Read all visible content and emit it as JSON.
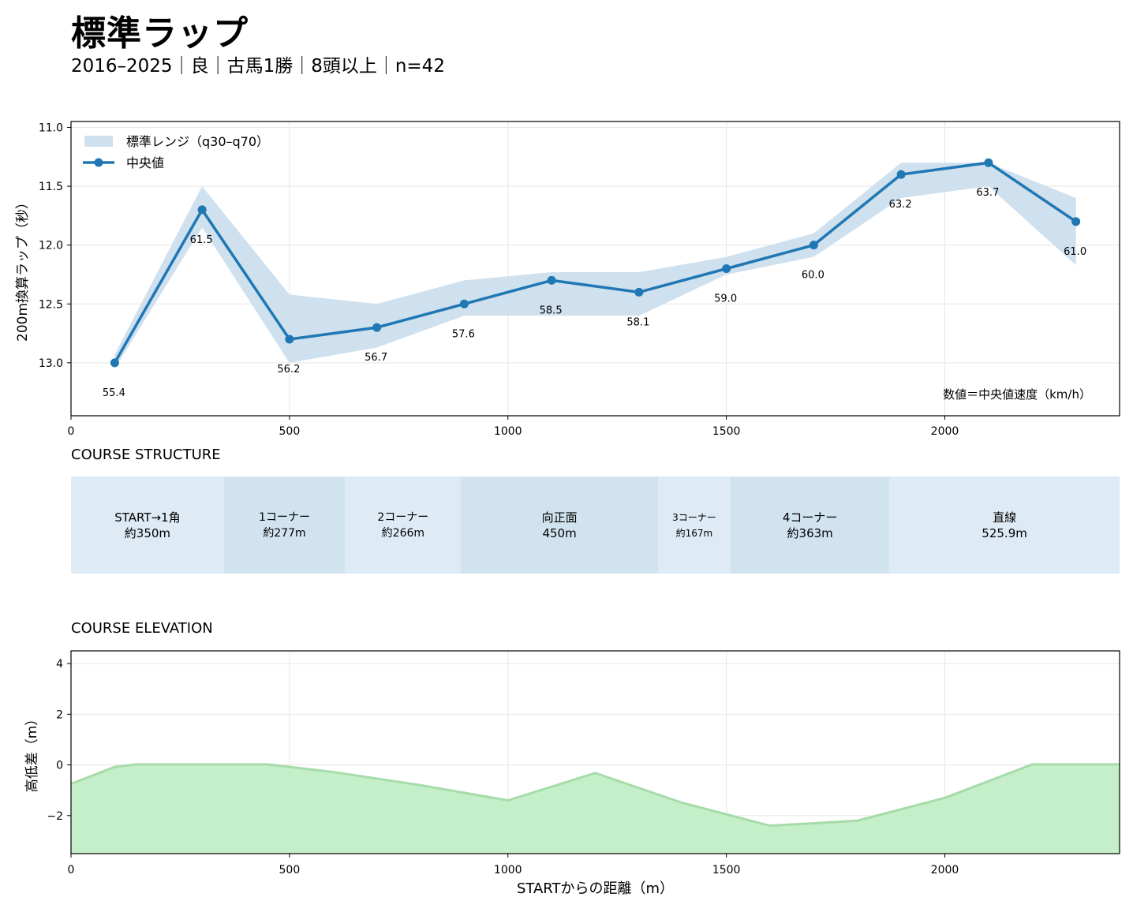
{
  "header": {
    "title": "標準ラップ",
    "subtitle": "2016–2025｜良｜古馬1勝｜8頭以上｜n=42"
  },
  "colors": {
    "line": "#1f77b4",
    "band": "#cfe0ee",
    "grid": "#e6e6e6",
    "seg_light": "#deeaf4",
    "seg_dark": "#d0e3ef",
    "elev_fill": "#c5efc9",
    "elev_line": "#a6dca9"
  },
  "chart_data": [
    {
      "type": "line",
      "title": "",
      "xlabel": "",
      "ylabel": "200m換算ラップ（秒）",
      "xlim": [
        0,
        2400
      ],
      "ylim": [
        13.45,
        10.95
      ],
      "y_inverted": true,
      "xticks": [
        0,
        500,
        1000,
        1500,
        2000
      ],
      "yticks": [
        11.0,
        11.5,
        12.0,
        12.5,
        13.0
      ],
      "grid": true,
      "legend_position": "top-left",
      "band_label": "標準レンジ（q30–q70）",
      "series": [
        {
          "name": "中央値",
          "x": [
            100,
            300,
            500,
            700,
            900,
            1100,
            1300,
            1500,
            1700,
            1900,
            2100,
            2300
          ],
          "y": [
            13.0,
            11.7,
            12.8,
            12.7,
            12.5,
            12.3,
            12.4,
            12.2,
            12.0,
            11.4,
            11.3,
            11.8
          ],
          "speed_labels": [
            "55.4",
            "61.5",
            "56.2",
            "56.7",
            "57.6",
            "58.5",
            "58.1",
            "59.0",
            "60.0",
            "63.2",
            "63.7",
            "61.0"
          ]
        }
      ],
      "band": {
        "x": [
          100,
          300,
          500,
          700,
          900,
          1100,
          1300,
          1500,
          1700,
          1900,
          2100,
          2300
        ],
        "q30": [
          12.93,
          11.5,
          12.42,
          12.5,
          12.3,
          12.23,
          12.23,
          12.1,
          11.9,
          11.3,
          11.3,
          11.6
        ],
        "q70": [
          13.05,
          11.85,
          13.0,
          12.87,
          12.6,
          12.6,
          12.6,
          12.25,
          12.1,
          11.6,
          11.5,
          12.17
        ]
      },
      "annotation": "数値＝中央値速度（km/h）"
    },
    {
      "type": "area",
      "title": "COURSE ELEVATION",
      "xlabel": "STARTからの距離（m）",
      "ylabel": "高低差（m）",
      "xlim": [
        0,
        2400
      ],
      "ylim": [
        -3.5,
        4.5
      ],
      "xticks": [
        0,
        500,
        1000,
        1500,
        2000
      ],
      "yticks": [
        4,
        2,
        0,
        -2
      ],
      "ytick_labels": [
        "4",
        "2",
        "0",
        "−2"
      ],
      "grid": true,
      "x": [
        0,
        100,
        150,
        450,
        600,
        800,
        1000,
        1200,
        1400,
        1600,
        1800,
        2000,
        2200,
        2400
      ],
      "y": [
        -0.75,
        -0.08,
        0.02,
        0.02,
        -0.28,
        -0.8,
        -1.4,
        -0.32,
        -1.5,
        -2.4,
        -2.2,
        -1.3,
        0.02,
        0.02
      ]
    }
  ],
  "structure": {
    "title": "COURSE STRUCTURE",
    "total_m": 2400,
    "segments": [
      {
        "line1": "START→1角",
        "line2": "約350m",
        "start": 0,
        "end": 350,
        "shade": "light",
        "size": 15
      },
      {
        "line1": "1コーナー",
        "line2": "約277m",
        "start": 350,
        "end": 627,
        "shade": "dark",
        "size": 14
      },
      {
        "line1": "2コーナー",
        "line2": "約266m",
        "start": 627,
        "end": 893,
        "shade": "light",
        "size": 14
      },
      {
        "line1": "向正面",
        "line2": "450m",
        "start": 893,
        "end": 1343,
        "shade": "dark",
        "size": 15
      },
      {
        "line1": "3コーナー",
        "line2": "約167m",
        "start": 1343,
        "end": 1510,
        "shade": "light",
        "size": 12
      },
      {
        "line1": "4コーナー",
        "line2": "約363m",
        "start": 1510,
        "end": 1873,
        "shade": "dark",
        "size": 15
      },
      {
        "line1": "直線",
        "line2": "525.9m",
        "start": 1873,
        "end": 2400,
        "shade": "light",
        "size": 15
      }
    ]
  }
}
